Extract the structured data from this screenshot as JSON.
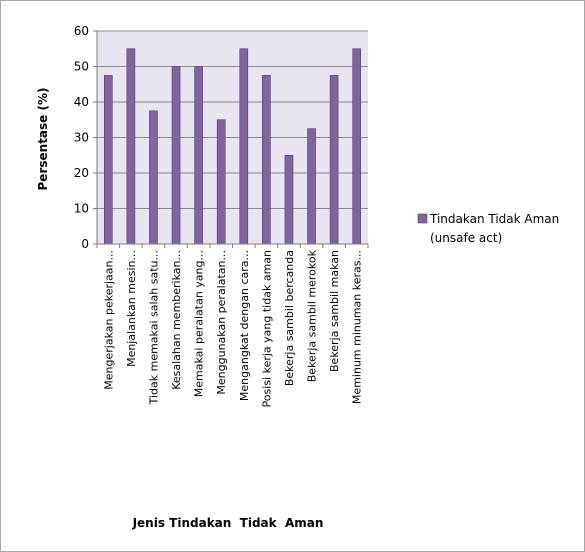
{
  "chart_data": {
    "type": "bar",
    "title": "",
    "xlabel": "Jenis Tindakan  Tidak  Aman",
    "ylabel": "Persentase (%)",
    "ylim": [
      0,
      60
    ],
    "yticks": [
      "0",
      "10",
      "20",
      "30",
      "40",
      "50",
      "60"
    ],
    "grid": true,
    "legend_position": "right",
    "categories": [
      "Mengerjakan pekerjaan...",
      "Menjalankan mesin...",
      "Tidak memakai salah satu...",
      "Kesalahan memberikan...",
      "Memakai peralatan yang...",
      "Menggunakan peralatan...",
      "Mengangkat dengan cara...",
      "Posisi kerja yang tidak aman",
      "Bekerja sambil bercanda",
      "Bekerja sambil merokok",
      "Bekerja sambil makan",
      "Meminum minuman keras..."
    ],
    "series": [
      {
        "name": "Tindakan Tidak Aman (unsafe act)",
        "values": [
          47.5,
          55,
          37.5,
          50,
          50,
          35,
          55,
          47.5,
          25,
          32.5,
          47.5,
          55
        ]
      }
    ],
    "colors": {
      "bar_fill": "#8064a2",
      "bar_stroke": "#4f3b6e",
      "plot_bg": "#e8e4f0",
      "grid": "#8c8c8c",
      "axis": "#7f7f7f"
    }
  },
  "legend": {
    "line1": "Tindakan Tidak Aman",
    "line2": "(unsafe act)"
  }
}
